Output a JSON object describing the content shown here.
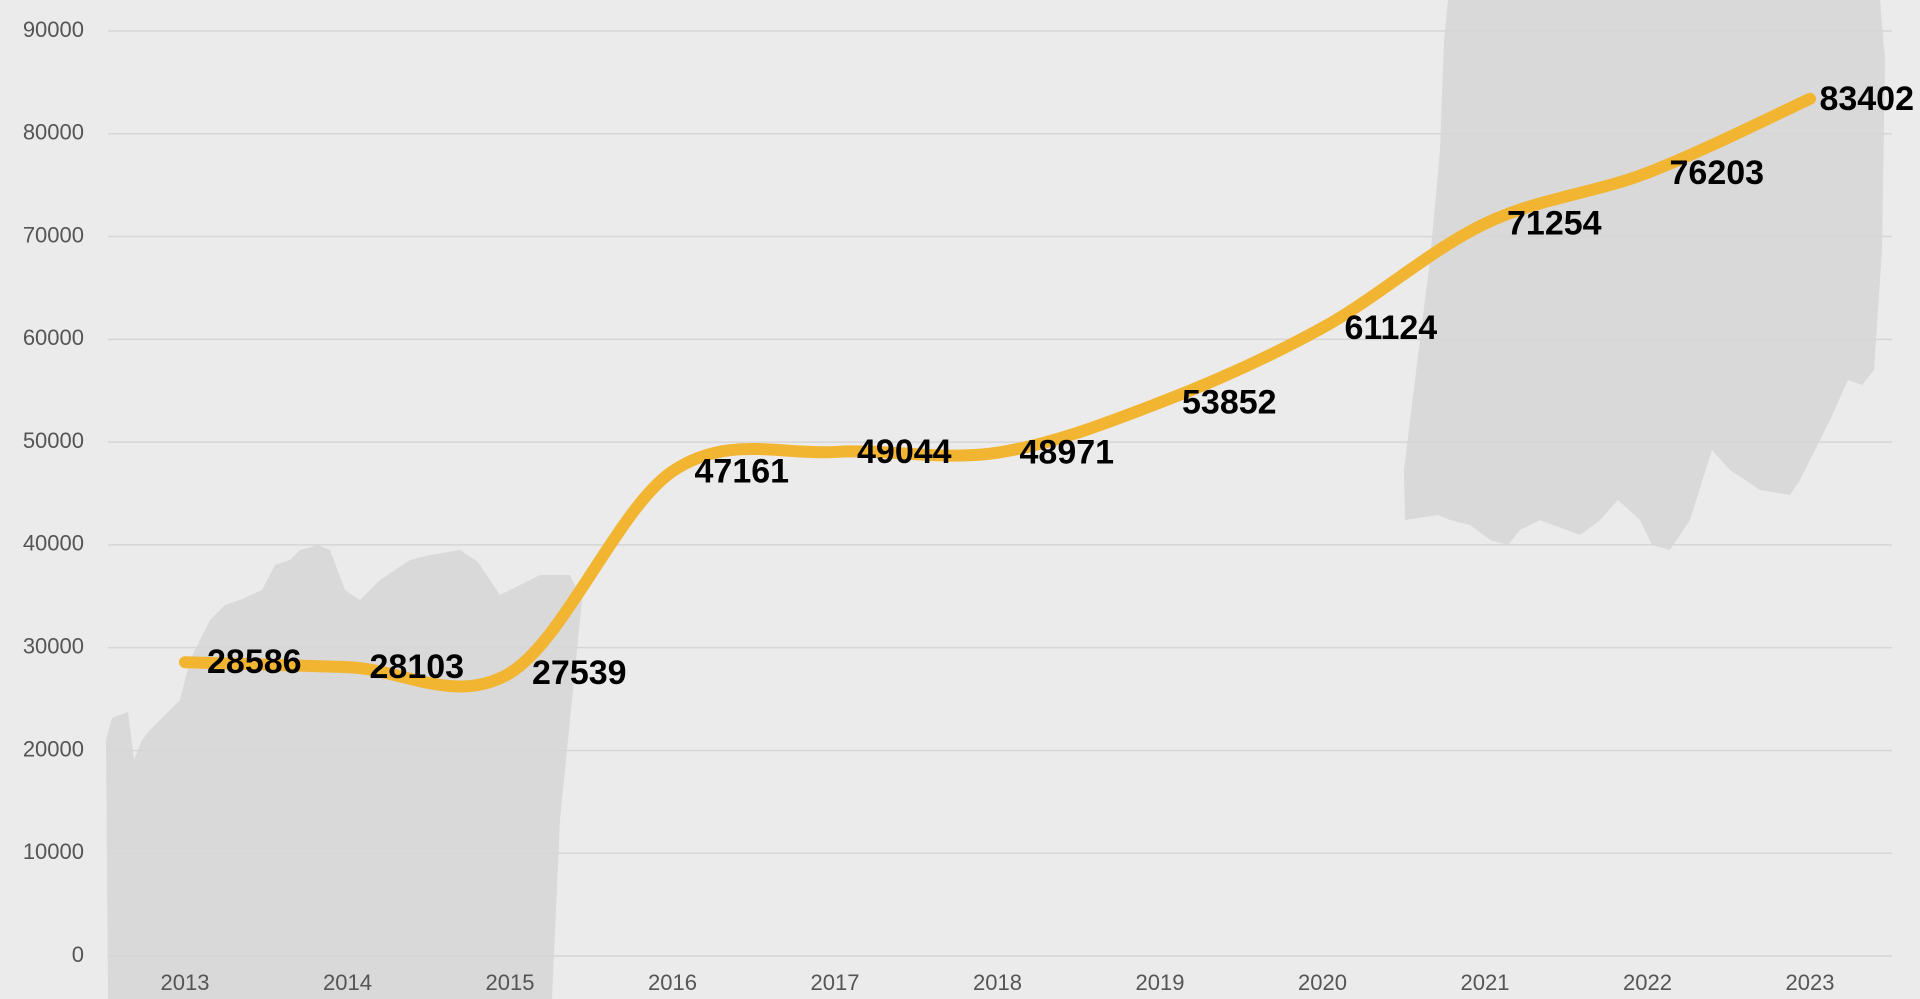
{
  "chart_data": {
    "type": "line",
    "categories": [
      "2013",
      "2014",
      "2015",
      "2016",
      "2017",
      "2018",
      "2019",
      "2020",
      "2021",
      "2022",
      "2023"
    ],
    "series": [
      {
        "name": null,
        "color": "#f2b531",
        "values": [
          28586,
          28103,
          27539,
          47161,
          49044,
          48971,
          53852,
          61124,
          71254,
          76203,
          83402
        ]
      }
    ],
    "ylim": [
      0,
      90000
    ],
    "yticks": [
      0,
      10000,
      20000,
      30000,
      40000,
      50000,
      60000,
      70000,
      80000,
      90000
    ],
    "grid": true
  }
}
